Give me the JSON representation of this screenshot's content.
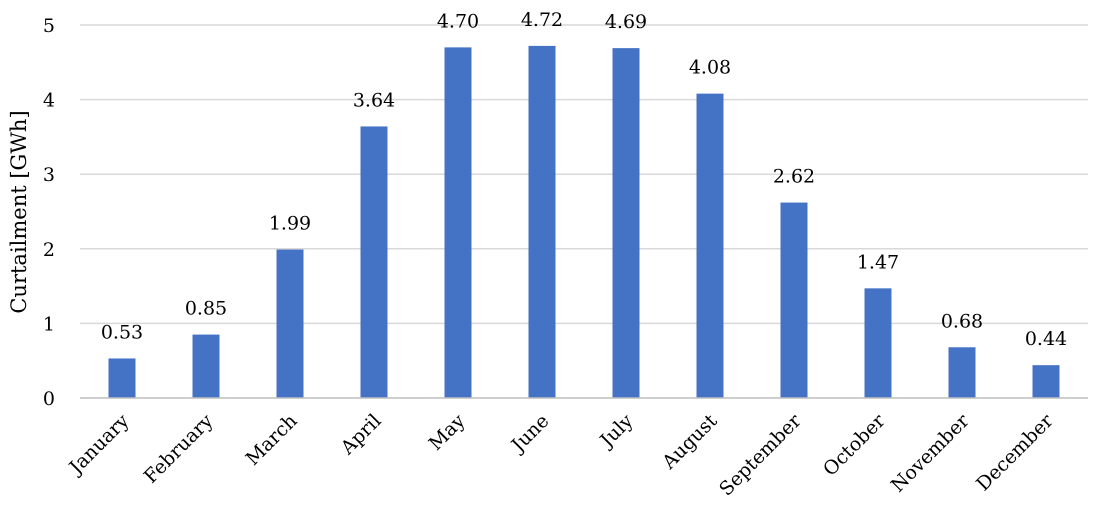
{
  "chart_data": {
    "type": "bar",
    "title": "",
    "xlabel": "",
    "ylabel": "Curtailment [GWh]",
    "ylim": [
      0,
      5
    ],
    "yticks": [
      0,
      1,
      2,
      3,
      4,
      5
    ],
    "grid": true,
    "legend": "none",
    "categories": [
      "January",
      "February",
      "March",
      "April",
      "May",
      "June",
      "July",
      "August",
      "September",
      "October",
      "November",
      "December"
    ],
    "values": [
      0.53,
      0.85,
      1.99,
      3.64,
      4.7,
      4.72,
      4.69,
      4.08,
      2.62,
      1.47,
      0.68,
      0.44
    ],
    "data_labels": [
      "0.53",
      "0.85",
      "1.99",
      "3.64",
      "4.70",
      "4.72",
      "4.69",
      "4.08",
      "2.62",
      "1.47",
      "0.68",
      "0.44"
    ],
    "colors": {
      "bar": "#4472C4",
      "grid": "#D9D9D9",
      "axis": "#BFBFBF"
    }
  }
}
